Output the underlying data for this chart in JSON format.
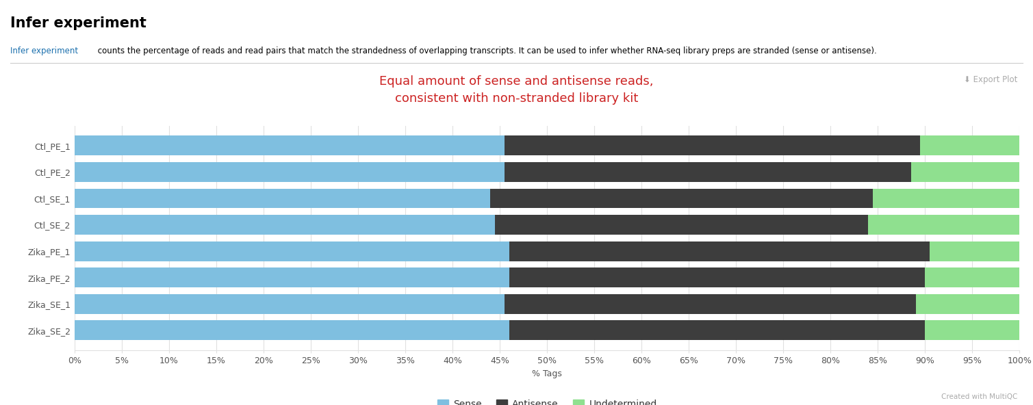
{
  "samples": [
    "Ctl_PE_1",
    "Ctl_PE_2",
    "Ctl_SE_1",
    "Ctl_SE_2",
    "Zika_PE_1",
    "Zika_PE_2",
    "Zika_SE_1",
    "Zika_SE_2"
  ],
  "sense": [
    45.5,
    45.5,
    44.0,
    44.5,
    46.0,
    46.0,
    45.5,
    46.0
  ],
  "antisense": [
    44.0,
    43.0,
    40.5,
    39.5,
    44.5,
    44.0,
    43.5,
    44.0
  ],
  "undetermined": [
    10.5,
    11.5,
    15.5,
    16.0,
    9.5,
    10.0,
    11.0,
    10.0
  ],
  "sense_color": "#7fbfe0",
  "antisense_color": "#3d3d3d",
  "undetermined_color": "#8fe08f",
  "chart_title": "Equal amount of sense and antisense reads,\nconsistent with non-stranded library kit",
  "title_color": "#cc2222",
  "xlabel": "% Tags",
  "xlim": [
    0,
    100
  ],
  "xtick_values": [
    0,
    5,
    10,
    15,
    20,
    25,
    30,
    35,
    40,
    45,
    50,
    55,
    60,
    65,
    70,
    75,
    80,
    85,
    90,
    95,
    100
  ],
  "xtick_labels": [
    "0%",
    "5%",
    "10%",
    "15%",
    "20%",
    "25%",
    "30%",
    "35%",
    "40%",
    "45%",
    "50%",
    "55%",
    "60%",
    "65%",
    "70%",
    "75%",
    "80%",
    "85%",
    "90%",
    "95%",
    "100%"
  ],
  "grid_color": "#e0e0e0",
  "background_color": "#ffffff",
  "bar_height": 0.75,
  "page_title": "Infer experiment",
  "description": " counts the percentage of reads and read pairs that match the strandedness of overlapping transcripts. It can be used to infer whether RNA-seq library preps are stranded (sense or antisense).",
  "link_text": "Infer experiment",
  "link_color": "#1a6fad",
  "export_text": "⬇ Export Plot",
  "footer_text": "Created with MultiQC",
  "legend_labels": [
    "Sense",
    "Antisense",
    "Undetermined"
  ]
}
